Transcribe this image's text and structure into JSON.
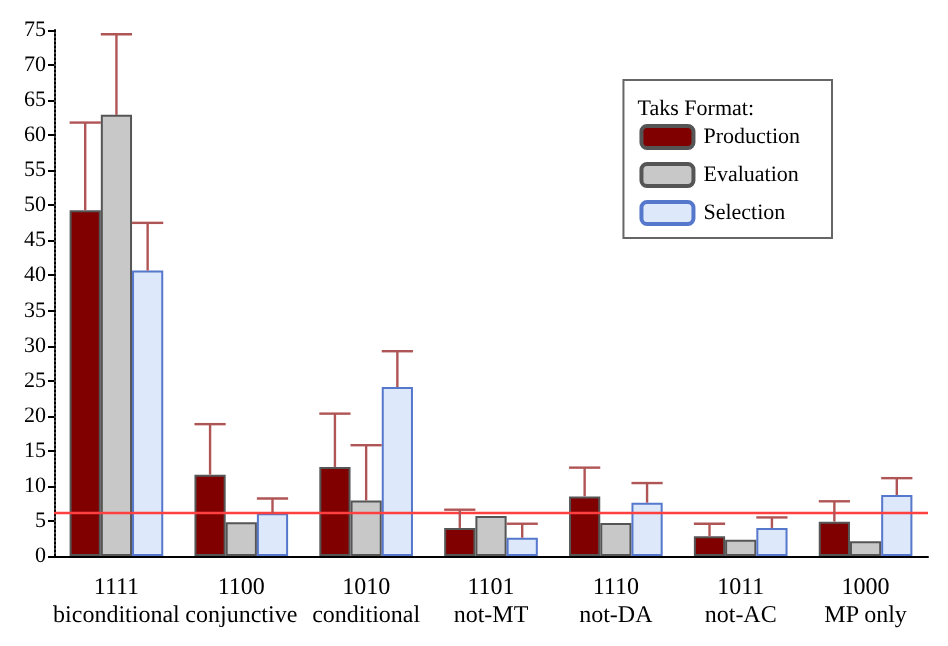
{
  "chart_data": {
    "type": "bar",
    "categories": [
      "1111\nbiconditional",
      "1100\nconjunctive",
      "1010\nconditional",
      "1101\nnot-MT",
      "1110\nnot-DA",
      "1011\nnot-AC",
      "1000\nMP only"
    ],
    "series": [
      {
        "name": "Production",
        "color": "#800000",
        "values": [
          49.3,
          11.6,
          12.7,
          4.0,
          8.5,
          2.8,
          4.9
        ],
        "errors": [
          [
            49.3,
            61.8
          ],
          [
            11.6,
            18.8
          ],
          [
            12.7,
            20.3
          ],
          [
            4.0,
            6.6
          ],
          [
            8.5,
            12.6
          ],
          [
            2.8,
            4.6
          ],
          [
            4.9,
            7.8
          ]
        ]
      },
      {
        "name": "Evaluation",
        "color": "#c8c8c8",
        "values": [
          62.9,
          4.8,
          7.9,
          5.7,
          4.7,
          2.3,
          2.1
        ],
        "errors": [
          [
            62.9,
            74.4
          ],
          null,
          [
            7.9,
            15.8
          ],
          null,
          null,
          null,
          null
        ]
      },
      {
        "name": "Selection",
        "color": "#dde9fa",
        "values": [
          40.7,
          6.1,
          24.1,
          2.6,
          7.6,
          4.0,
          8.7
        ],
        "errors": [
          [
            40.7,
            47.5
          ],
          [
            6.1,
            8.2
          ],
          [
            24.1,
            29.2
          ],
          [
            2.6,
            4.6
          ],
          [
            7.6,
            10.4
          ],
          [
            4.0,
            5.5
          ],
          [
            8.7,
            11.1
          ]
        ]
      }
    ],
    "ylim": [
      0,
      75
    ],
    "yticks": [
      0,
      5,
      10,
      15,
      20,
      25,
      30,
      35,
      40,
      45,
      50,
      55,
      60,
      65,
      70,
      75
    ],
    "ref_lines": [
      {
        "axis": "y",
        "value": 6.2,
        "color": "#ff4040"
      }
    ],
    "legend": "top right",
    "legend_title": "Taks Format:",
    "grid": false
  }
}
